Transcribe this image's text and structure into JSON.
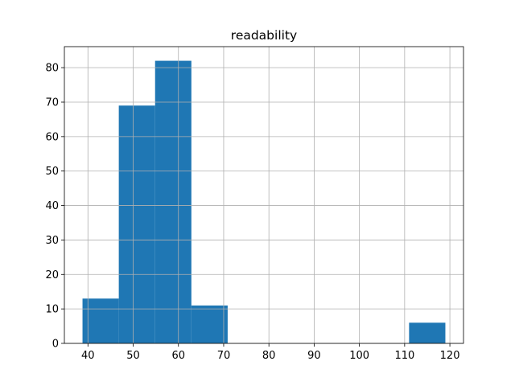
{
  "chart_data": {
    "type": "histogram",
    "title": "readability",
    "bins": [
      38.8,
      46.82,
      54.84,
      62.86,
      70.88,
      78.9,
      86.92,
      94.94,
      102.96,
      110.98,
      119.0
    ],
    "counts": [
      13,
      69,
      82,
      11,
      0,
      0,
      0,
      0,
      0,
      6
    ],
    "color": "#1f77b4",
    "xlim": [
      34.79,
      123.01
    ],
    "xticks": [
      40,
      50,
      60,
      70,
      80,
      90,
      100,
      110,
      120
    ],
    "ylim": [
      0,
      86.1
    ],
    "yticks": [
      0,
      10,
      20,
      30,
      40,
      50,
      60,
      70,
      80
    ],
    "grid": true
  }
}
